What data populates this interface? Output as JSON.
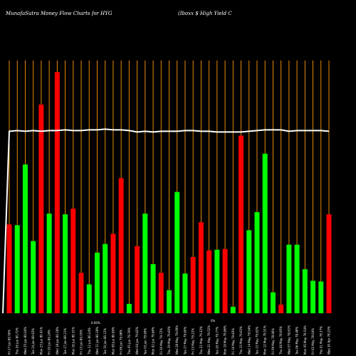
{
  "chart_data": {
    "type": "bar",
    "title_left": "MunafaSutra  Money Flow  Charts for HYG",
    "title_right": "(Iboxx $ High Yield C",
    "categories": [
      "Fri 27 Jun 80.56%",
      "Thu 26 Jun 80.72%",
      "Wed 25 Jun 80.64%",
      "Tue 24 Jun 80.63%",
      "Mon 23 Jun 80.41%",
      "Fri 20 Jun 80.24%",
      "Wed 18 Jun 80.18%",
      "Tue 17 Jun 80.21%",
      "Mon 16 Jun 80.31%",
      "Fri 13 Jun 80.05%",
      "Thu 12 Jun 80.24%",
      "Wed 11 Jun 80.18%",
      "Tue 10 Jun 80.12%",
      "Mon 09 Jun 80.06%",
      "Fri 06 Jun 79.98%",
      "Thu 05 Jun 79.76%",
      "Wed 04 Jun 79.82%",
      "Tue 03 Jun 79.69%",
      "Mon 02 Jun 79.66%",
      "Fri 30 May 79.72%",
      "Thu 29 May 79.60%",
      "Wed 28 May 79.69%",
      "Tue 27 May 79.65%",
      "Fri 23 May 79.22%",
      "Thu 22 May 79.32%",
      "Wed 21 May 79.52%",
      "Tue 20 May 79.77%",
      "Mon 19 May 79.86%",
      "Fri 16 May 79.83%",
      "Thu 15 May 79.63%",
      "Wed 14 May 79.54%",
      "Tue 13 May 79.62%",
      "Mon 12 May 79.51%",
      "Fri 09 May 78.96%",
      "Thu 08 May 78.95%",
      "Wed 07 May 78.61%",
      "Tue 06 May 78.48%",
      "Mon 05 May 78.54%",
      "Fri 02 May 78.64%",
      "Thu 01 May 78.37%",
      "Wed 30 Apr 78.25%"
    ],
    "values": [
      123,
      122,
      206,
      100,
      289,
      138,
      334,
      137,
      145,
      56,
      40,
      84,
      96,
      110,
      187,
      13,
      93,
      138,
      68,
      56,
      32,
      168,
      55,
      78,
      126,
      87,
      88,
      89,
      9,
      246,
      115,
      140,
      221,
      29,
      12,
      95,
      95,
      61,
      45,
      44,
      137
    ],
    "colors": [
      "red",
      "green",
      "green",
      "green",
      "red",
      "green",
      "red",
      "green",
      "red",
      "red",
      "green",
      "green",
      "green",
      "red",
      "red",
      "green",
      "red",
      "green",
      "green",
      "red",
      "green",
      "green",
      "green",
      "red",
      "red",
      "red",
      "green",
      "red",
      "green",
      "red",
      "green",
      "green",
      "green",
      "green",
      "red",
      "green",
      "green",
      "green",
      "green",
      "green",
      "red"
    ],
    "flow_line": [
      252,
      253,
      252,
      253,
      252,
      253,
      253,
      254,
      253,
      253,
      254,
      254,
      255,
      254,
      254,
      253,
      251,
      252,
      251,
      252,
      252,
      252,
      253,
      253,
      252,
      252,
      251,
      251,
      251,
      251,
      252,
      253,
      254,
      254,
      254,
      252,
      253,
      253,
      253,
      253,
      252
    ],
    "flow_line_start": 0,
    "ylim": [
      0,
      350
    ],
    "grid": "vertical",
    "palette": {
      "red": "#ff0000",
      "green": "#00ff00",
      "grid": "#ff9900",
      "line": "#ffffff",
      "background": "#000000"
    },
    "stray_labels": [
      "0.00%",
      "0%"
    ]
  }
}
